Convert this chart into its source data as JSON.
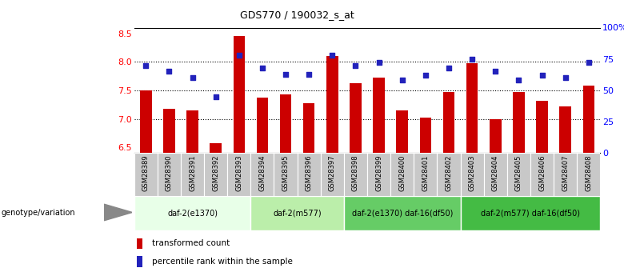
{
  "title": "GDS770 / 190032_s_at",
  "samples": [
    "GSM28389",
    "GSM28390",
    "GSM28391",
    "GSM28392",
    "GSM28393",
    "GSM28394",
    "GSM28395",
    "GSM28396",
    "GSM28397",
    "GSM28398",
    "GSM28399",
    "GSM28400",
    "GSM28401",
    "GSM28402",
    "GSM28403",
    "GSM28404",
    "GSM28405",
    "GSM28406",
    "GSM28407",
    "GSM28408"
  ],
  "bar_values": [
    7.5,
    7.18,
    7.15,
    6.58,
    8.45,
    7.38,
    7.43,
    7.28,
    8.1,
    7.62,
    7.72,
    7.15,
    7.02,
    7.47,
    7.98,
    7.0,
    7.47,
    7.32,
    7.22,
    7.58
  ],
  "dot_percentiles": [
    70,
    65,
    60,
    45,
    78,
    68,
    63,
    63,
    78,
    70,
    72,
    58,
    62,
    68,
    75,
    65,
    58,
    62,
    60,
    72
  ],
  "ylim_left": [
    6.4,
    8.6
  ],
  "ylim_right": [
    0,
    100
  ],
  "yticks_left": [
    6.5,
    7.0,
    7.5,
    8.0,
    8.5
  ],
  "yticks_right": [
    0,
    25,
    50,
    75,
    100
  ],
  "ytick_right_labels": [
    "0",
    "25",
    "50",
    "75",
    "100%"
  ],
  "gridlines": [
    7.0,
    7.5,
    8.0
  ],
  "bar_color": "#cc0000",
  "dot_color": "#2222bb",
  "groups": [
    {
      "label": "daf-2(e1370)",
      "start": 0,
      "end": 5,
      "color": "#e8ffe8"
    },
    {
      "label": "daf-2(m577)",
      "start": 5,
      "end": 9,
      "color": "#bbeeaa"
    },
    {
      "label": "daf-2(e1370) daf-16(df50)",
      "start": 9,
      "end": 14,
      "color": "#66cc66"
    },
    {
      "label": "daf-2(m577) daf-16(df50)",
      "start": 14,
      "end": 20,
      "color": "#44bb44"
    }
  ],
  "group_label": "genotype/variation",
  "legend_bar_label": "transformed count",
  "legend_dot_label": "percentile rank within the sample"
}
